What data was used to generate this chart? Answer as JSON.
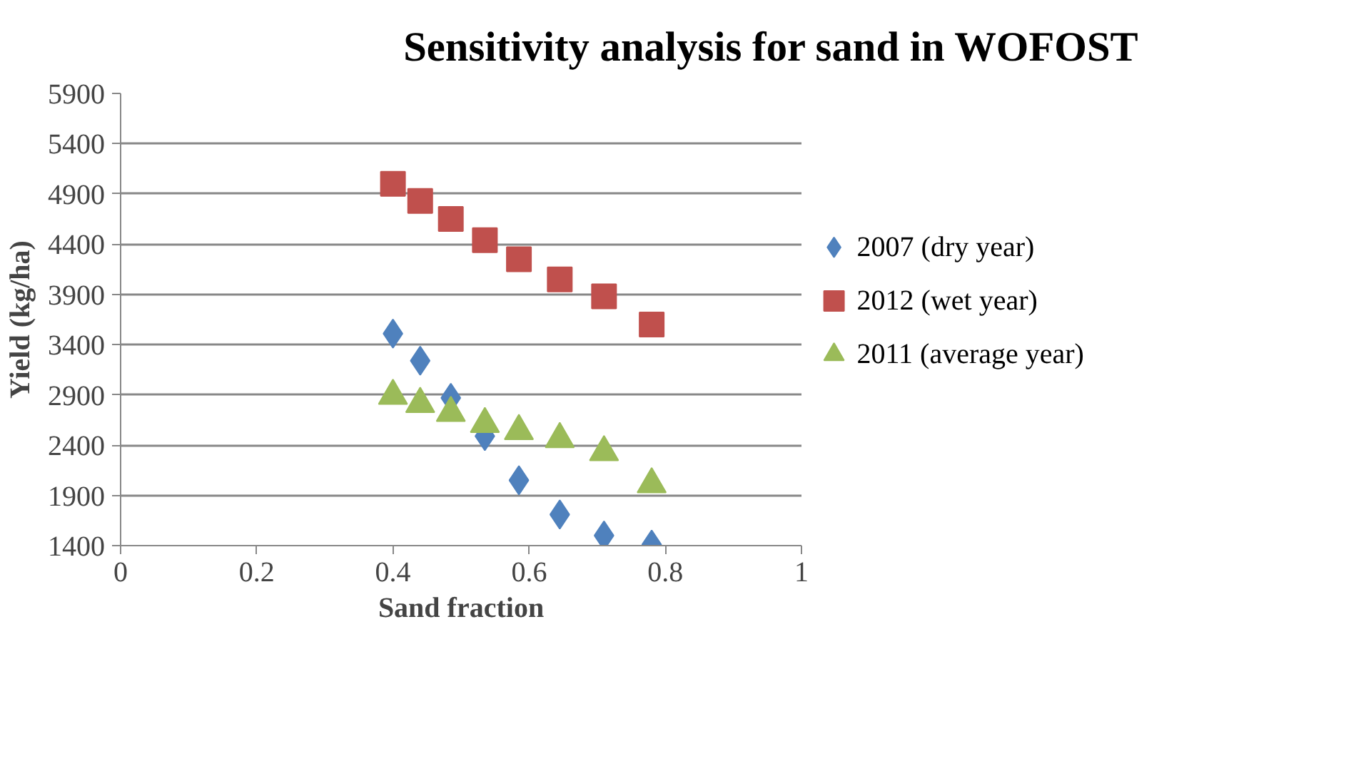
{
  "chart_data": {
    "type": "scatter",
    "title": "Sensitivity analysis for sand in WOFOST",
    "xlabel": "Sand fraction",
    "ylabel": "Yield (kg/ha)",
    "xlim": [
      0,
      1
    ],
    "xticks": [
      0,
      0.2,
      0.4,
      0.6,
      0.8,
      1
    ],
    "ylim": [
      1400,
      5900
    ],
    "yticks": [
      1400,
      1900,
      2400,
      2900,
      3400,
      3900,
      4400,
      4900,
      5400,
      5900
    ],
    "grid": "y",
    "legend": "right",
    "series": [
      {
        "name": "2007 (dry year)",
        "color": "#4f81bd",
        "marker": "diamond",
        "x": [
          0.4,
          0.44,
          0.485,
          0.535,
          0.585,
          0.645,
          0.71,
          0.78
        ],
        "values": [
          3510,
          3240,
          2870,
          2490,
          2050,
          1710,
          1500,
          1410
        ]
      },
      {
        "name": "2012 (wet year)",
        "color": "#c0504d",
        "marker": "square",
        "x": [
          0.4,
          0.44,
          0.485,
          0.535,
          0.585,
          0.645,
          0.71,
          0.78
        ],
        "values": [
          5000,
          4830,
          4650,
          4440,
          4250,
          4050,
          3880,
          3600
        ]
      },
      {
        "name": "2011 (average year)",
        "color": "#9bbb59",
        "marker": "triangle",
        "x": [
          0.4,
          0.44,
          0.485,
          0.535,
          0.585,
          0.645,
          0.71,
          0.78
        ],
        "values": [
          2890,
          2810,
          2720,
          2610,
          2540,
          2460,
          2330,
          2010
        ]
      }
    ]
  }
}
